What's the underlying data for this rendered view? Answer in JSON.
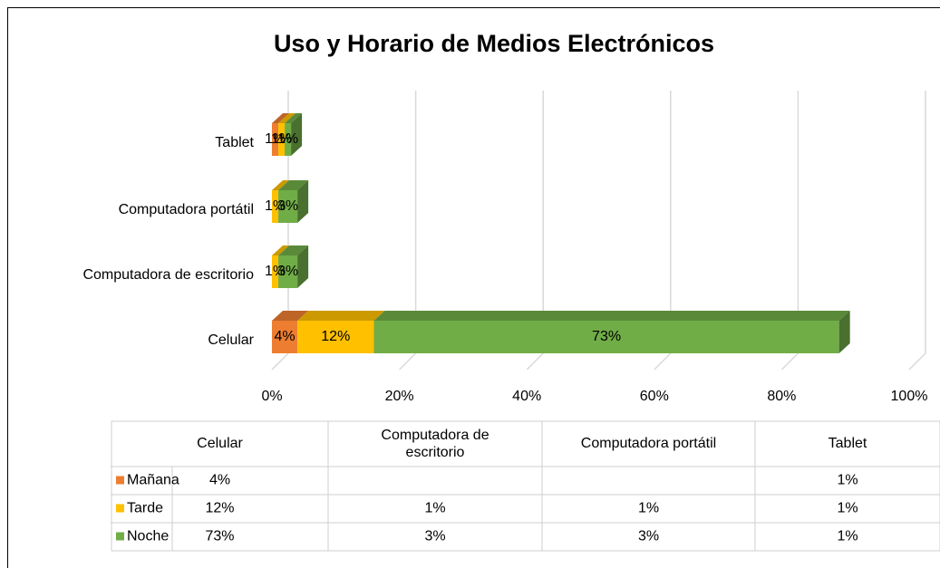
{
  "chart_data": {
    "type": "bar3d_stacked_horizontal",
    "title": "Uso y Horario de Medios Electrónicos",
    "categories": [
      "Celular",
      "Computadora de escritorio",
      "Computadora portátil",
      "Tablet"
    ],
    "series": [
      {
        "name": "Mañana",
        "color": "#ED7D31",
        "values": [
          4,
          null,
          null,
          1
        ],
        "value_labels": [
          "4%",
          null,
          null,
          "1%"
        ]
      },
      {
        "name": "Tarde",
        "color": "#FFC000",
        "values": [
          12,
          1,
          1,
          1
        ],
        "value_labels": [
          "12%",
          "1%",
          "1%",
          "1%"
        ]
      },
      {
        "name": "Noche",
        "color": "#70AD47",
        "values": [
          73,
          3,
          3,
          1
        ],
        "value_labels": [
          "73%",
          "3%",
          "3%",
          "1%"
        ]
      }
    ],
    "xlim": [
      0,
      100
    ],
    "xticks": [
      {
        "value": 0,
        "label": "0%"
      },
      {
        "value": 20,
        "label": "20%"
      },
      {
        "value": 40,
        "label": "40%"
      },
      {
        "value": 60,
        "label": "60%"
      },
      {
        "value": 80,
        "label": "80%"
      },
      {
        "value": 100,
        "label": "100%"
      }
    ],
    "grid": true,
    "data_table": true
  }
}
